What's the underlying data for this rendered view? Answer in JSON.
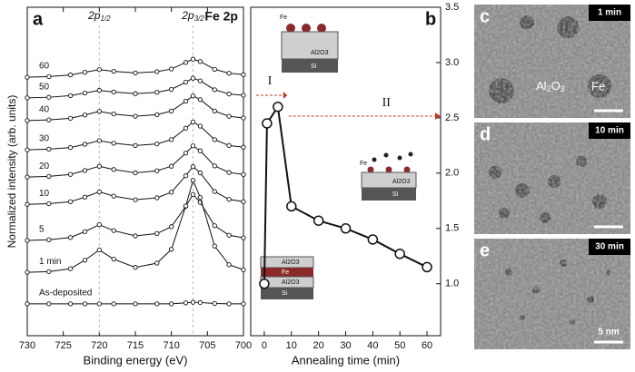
{
  "chart_data": [
    {
      "type": "line",
      "panel": "a",
      "xlabel": "Binding energy (eV)",
      "ylabel": "Normalized intensity (arb. units)",
      "peak_labels": [
        {
          "main": "2p",
          "sub": "1/2",
          "x": 720
        },
        {
          "main": "2p",
          "sub": "3/2",
          "x": 707
        }
      ],
      "element_label": "Fe 2p",
      "xlim": [
        730,
        700
      ],
      "xticks": [
        730,
        725,
        720,
        715,
        710,
        705,
        700
      ],
      "ylim": [
        0,
        10
      ],
      "x": [
        730,
        727,
        724,
        722,
        720,
        718,
        715,
        712,
        710,
        708,
        707,
        706,
        704,
        702,
        700
      ],
      "series": [
        {
          "name": "60",
          "color": "#111111",
          "values": [
            7.87,
            7.89,
            7.94,
            8.02,
            8.1,
            8.05,
            8.0,
            8.04,
            8.12,
            8.32,
            8.42,
            8.35,
            8.11,
            7.99,
            7.95
          ]
        },
        {
          "name": "50",
          "color": "#111111",
          "values": [
            7.24,
            7.26,
            7.31,
            7.39,
            7.47,
            7.42,
            7.37,
            7.41,
            7.5,
            7.72,
            7.84,
            7.76,
            7.49,
            7.36,
            7.32
          ]
        },
        {
          "name": "40",
          "color": "#111111",
          "values": [
            6.55,
            6.57,
            6.62,
            6.72,
            6.83,
            6.75,
            6.68,
            6.73,
            6.84,
            7.14,
            7.3,
            7.19,
            6.84,
            6.68,
            6.63
          ]
        },
        {
          "name": "30",
          "color": "#111111",
          "values": [
            5.66,
            5.68,
            5.73,
            5.83,
            5.94,
            5.86,
            5.79,
            5.84,
            5.97,
            6.32,
            6.51,
            6.38,
            5.97,
            5.79,
            5.74
          ]
        },
        {
          "name": "20",
          "color": "#111111",
          "values": [
            4.83,
            4.85,
            4.91,
            5.03,
            5.16,
            5.06,
            4.96,
            5.02,
            5.16,
            5.56,
            5.78,
            5.63,
            5.17,
            4.97,
            4.91
          ]
        },
        {
          "name": "10",
          "color": "#111111",
          "values": [
            4.0,
            4.02,
            4.08,
            4.22,
            4.38,
            4.25,
            4.14,
            4.2,
            4.37,
            4.87,
            5.15,
            4.96,
            4.39,
            4.15,
            4.08
          ]
        },
        {
          "name": "5",
          "color": "#111111",
          "values": [
            2.9,
            2.92,
            2.99,
            3.17,
            3.38,
            3.2,
            3.04,
            3.11,
            3.32,
            3.94,
            4.3,
            4.06,
            3.35,
            3.06,
            2.98
          ]
        },
        {
          "name": "1 min",
          "color": "#111111",
          "values": [
            1.93,
            1.95,
            2.04,
            2.3,
            2.61,
            2.33,
            2.08,
            2.21,
            2.63,
            3.95,
            4.73,
            4.21,
            2.73,
            2.16,
            2.01
          ]
        },
        {
          "name": "As-deposited",
          "color": "#111111",
          "values": [
            0.97,
            0.97,
            0.97,
            0.97,
            0.97,
            0.97,
            0.97,
            0.97,
            0.97,
            1.0,
            1.02,
            1.01,
            0.98,
            0.97,
            0.97
          ]
        }
      ]
    },
    {
      "type": "line",
      "panel": "b",
      "xlabel": "Annealing time (min)",
      "color": "#111111",
      "x": [
        0,
        1,
        5,
        10,
        20,
        30,
        40,
        50,
        60
      ],
      "values": [
        1.0,
        2.45,
        2.6,
        1.7,
        1.57,
        1.5,
        1.4,
        1.27,
        1.15
      ],
      "xlim": [
        -5,
        65
      ],
      "xticks": [
        0,
        10,
        20,
        30,
        40,
        50,
        60
      ],
      "ylim": [
        0.53,
        3.5
      ],
      "yticks": [
        {
          "value": 1,
          "label": "1.0"
        },
        1.5,
        {
          "value": 2,
          "label": "2.0"
        },
        2.5,
        {
          "value": 3,
          "label": "3.0"
        },
        3.5
      ],
      "annotations": [
        "I",
        "II"
      ]
    }
  ],
  "schematics": {
    "fe": "Fe",
    "al2o3_main": "Al",
    "al2o3_sub": "2",
    "al2o3_end": "O",
    "al2o3_sub2": "3",
    "si": "Si"
  },
  "images": [
    {
      "panel": "c",
      "time": "1 min",
      "labels": [
        "Fe"
      ]
    },
    {
      "panel": "d",
      "time": "10 min"
    },
    {
      "panel": "e",
      "time": "30 min",
      "scale": "5 nm"
    }
  ]
}
